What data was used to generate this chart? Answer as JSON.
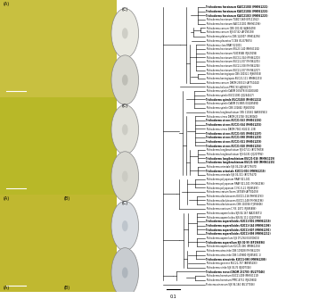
{
  "taxa": [
    "Trichoderma harzianum KACC21010 (MH961221)",
    "Trichoderma harzianum KACC21016 (MH961226)",
    "Trichoderma harzianum KACC21013 (MH961223)",
    "Trichoderma harzianum TUB17-969 (EF111962)",
    "Trichoderma harzianum KACC21001 (MH961198)",
    "Trichoderma cornum CBS 101.82 (AJ865493)",
    "Trichoderma cornum SJS 07-82 (AF195193)",
    "Trichoderma plakoortis CBS 124307 (MH914295)",
    "Trichoderma pleurotos T-CBS (EU279875)",
    "Trichoderma claro RRAF 021001",
    "Trichoderma harzianum KVL23-140 (MH961202)",
    "Trichoderma harzianum FL81958B (FJ619196)",
    "Trichoderma harzianum KUC31-364 (MH961203)",
    "Trichoderma harzianum KUC21-007 (MH961205)",
    "Trichoderma harzianum KUC21-008 (MH961206)",
    "Trichoderma harzianum KUC21-007 (MH961207)",
    "Trichoderma koningiopsis CBS 100321 (FJ669259)",
    "Trichoderma koningiopsis KUC21-111 (MH961215)",
    "Trichoderma cornum DAOM 230313 (AY750440)",
    "Trichoderma helicon PPRC-93 (AJ938173)",
    "Trichoderma spirale DAOM 165878 (EU280580)",
    "Trichoderma spirale KUC21091 (JQ244417)",
    "Trichoderma spirale KUC21068 (MH961221)",
    "Trichoderma spirale DAOM 153885 (EU285690)",
    "Trichoderma spirale CBS 132682 (FJ460291)",
    "Trichoderma longibrachiatum CBS 110561 (AB085941)",
    "Trichoderma virens DAOM 231748 (EU280060)",
    "Trichoderma virens KUC21-163 (MH961196)",
    "Trichoderma virens KUC21-064 (MH961215)",
    "Trichoderma virens DAOM 7361 (KU211-139)",
    "Trichoderma virens KUC21-165 (MH961197)",
    "Trichoderma virens KUC21-098 (MH961219)",
    "Trichoderma virens KUC21-011 (MH961219)",
    "Trichoderma virens KUC21-010 (MH961216)",
    "Trichoderma longibrachiatum SJS 07-51 (AY179059)",
    "Trichoderma longibrachiatum SJS 04-91 (JQ207994)",
    "Trichoderma longibrachiatum KUC21-016 (MH961219)",
    "Trichoderma longibrachiatum KUC21-108 (MH961215)",
    "Trichoderma orientale SJS 04-216 (AY175670)",
    "Trichoderma orientale KUC21-016 (MH961219)",
    "Trichoderma orientale SJS 04-321 (AY175670)",
    "Trichoderma polysporum RRAF 021-101",
    "Trichoderma polysporum RRAF 021-101 (MH961196)",
    "Trichoderma polysporum C F.K. E-21 (FJ895497)",
    "Trichoderma crasum Saem 187049 (AY700478)",
    "Trichoderma albolutescens KUC21-116 (MH961193)",
    "Trichoderma albolutescens KUC21-148 (MH961196)",
    "Trichoderma albolutescens CBS 110026 (FJ895606)",
    "Trichoderma rossicum C F.K. 2071 (FJ895886)",
    "Trichoderma asperelloides SJS 04-167 (AB218071)",
    "Trichoderma asperelloides SJS 04-111 (JQ207994)",
    "Trichoderma asperelloides KUC21-001 (MH961219)",
    "Trichoderma asperelloides KUC21-164 (MH961196)",
    "Trichoderma asperelloides KUC21-007 (MH961291)",
    "Trichoderma asperelloides KUC21-098 (MH961212)",
    "Trichoderma asperellum SJS 07-294 (EU300615)",
    "Trichoderma asperellum SJS 02-99 (EF196896)",
    "Trichoderma asperellum KUC21-066 (MH961216)",
    "Trichoderma atroviride CBS 119028 (MH961219)",
    "Trichoderma atroviride CBS 1-09980 (FJ895601 1)",
    "Trichoderma atroviride KUC21-080 (MH961208)",
    "Trichoderma ganense KUC21-747 (AB965493)",
    "Trichoderma viride SJS 04-76 (EJ807326)",
    "Trichoderma reesei DAOM 231703 (EU177046)",
    "Trichoderma hamatum KUC21-009 (MH961219)",
    "Trichoderma hamatum PPRC-8732 (FJ619902)",
    "Protocrea ainearum SJS 94-184 (EU177056)"
  ],
  "bold_indices": [
    0,
    1,
    2,
    22,
    27,
    28,
    30,
    31,
    32,
    33,
    36,
    37,
    39,
    51,
    52,
    53,
    54,
    56,
    60,
    63
  ],
  "scale_bar_label": "0.1",
  "image_bg_top": "#c8c040",
  "image_bg_mid": "#b8b828",
  "image_bg_bot": "#c0b830",
  "colony_colors": [
    "#e8e8e0",
    "#d8d8d0",
    "#e0e0d8",
    "#d8d8d0",
    "#d8dce0",
    "#c8ccd0"
  ],
  "colony_inner": [
    "#c8c8c0",
    "#b8b8b0",
    "#c8c8c0",
    "#c8c8c0",
    "#b8c0c8",
    "#a8b0b8"
  ],
  "tree_line_color": "#000000",
  "figure_bg": "#ffffff",
  "lw": 0.4,
  "label_fontsize": 1.8,
  "boot_fontsize": 1.6,
  "scale_fontsize": 3.5
}
